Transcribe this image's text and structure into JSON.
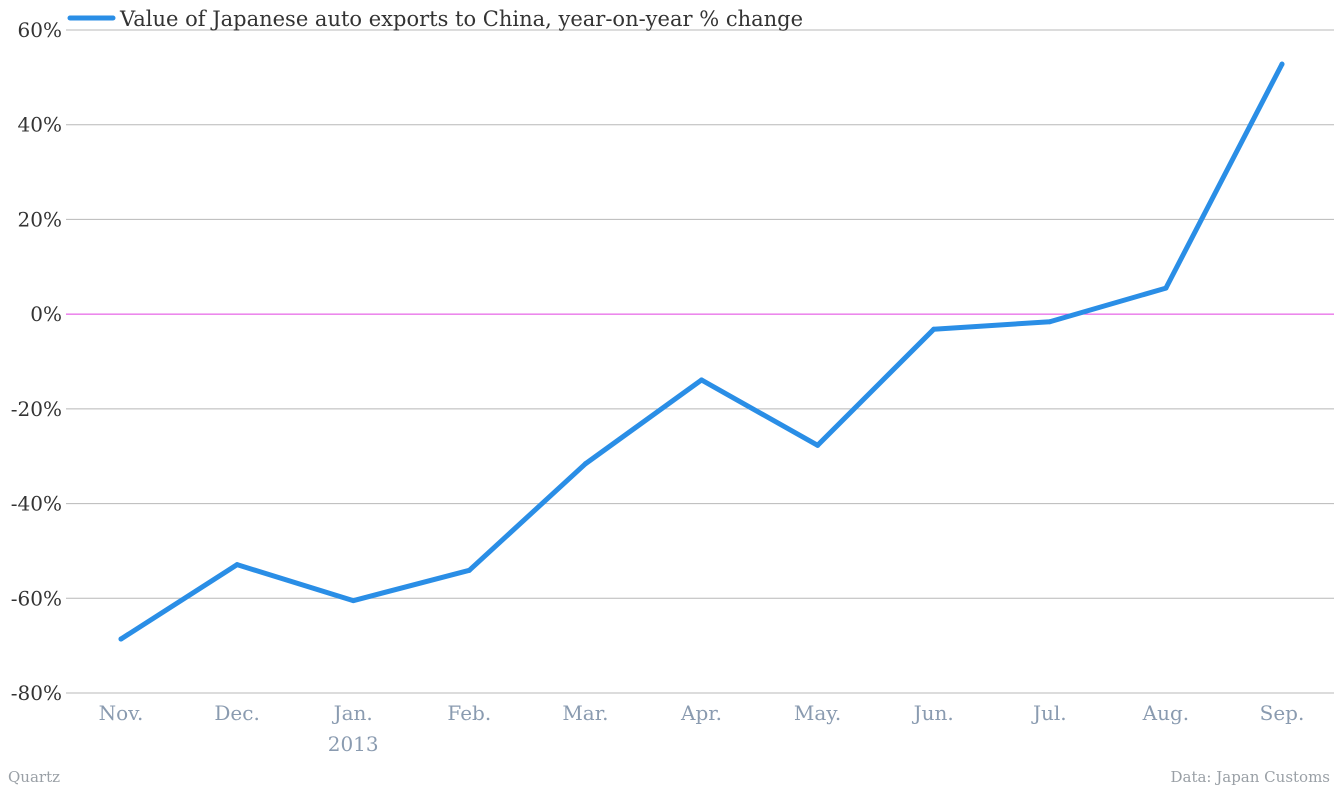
{
  "chart_data": {
    "type": "line",
    "categories": [
      "Nov.",
      "Dec.",
      "Jan.",
      "Feb.",
      "Mar.",
      "Apr.",
      "May.",
      "Jun.",
      "Jul.",
      "Aug.",
      "Sep."
    ],
    "category_sublabels": [
      "",
      "",
      "2013",
      "",
      "",
      "",
      "",
      "",
      "",
      "",
      ""
    ],
    "series": [
      {
        "name": "Value of Japanese auto exports to China, year-on-year % change",
        "values": [
          -68.6,
          -52.9,
          -60.5,
          -54.1,
          -31.6,
          -13.9,
          -27.7,
          -3.2,
          -1.6,
          5.5,
          52.8
        ],
        "color": "#2a8ee6"
      }
    ],
    "y_ticks": [
      -80,
      -60,
      -40,
      -20,
      0,
      20,
      40,
      60
    ],
    "y_tick_labels": [
      "-80%",
      "-60%",
      "-40%",
      "-20%",
      "0%",
      "20%",
      "40%",
      "60%"
    ],
    "ylim": [
      -80,
      60
    ],
    "grid": true,
    "zero_line_color": "#e040e0",
    "legend_position": "top-left"
  },
  "footer": {
    "left": "Quartz",
    "right": "Data: Japan Customs"
  }
}
